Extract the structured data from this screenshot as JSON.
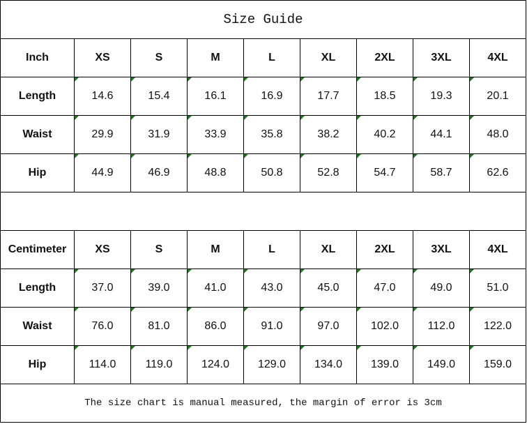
{
  "title": "Size Guide",
  "sizes": [
    "XS",
    "S",
    "M",
    "L",
    "XL",
    "2XL",
    "3XL",
    "4XL"
  ],
  "tables": [
    {
      "unit": "Inch",
      "rows": [
        {
          "label": "Length",
          "values": [
            "14.6",
            "15.4",
            "16.1",
            "16.9",
            "17.7",
            "18.5",
            "19.3",
            "20.1"
          ]
        },
        {
          "label": "Waist",
          "values": [
            "29.9",
            "31.9",
            "33.9",
            "35.8",
            "38.2",
            "40.2",
            "44.1",
            "48.0"
          ]
        },
        {
          "label": "Hip",
          "values": [
            "44.9",
            "46.9",
            "48.8",
            "50.8",
            "52.8",
            "54.7",
            "58.7",
            "62.6"
          ]
        }
      ]
    },
    {
      "unit": "Centimeter",
      "rows": [
        {
          "label": "Length",
          "values": [
            "37.0",
            "39.0",
            "41.0",
            "43.0",
            "45.0",
            "47.0",
            "49.0",
            "51.0"
          ]
        },
        {
          "label": "Waist",
          "values": [
            "76.0",
            "81.0",
            "86.0",
            "91.0",
            "97.0",
            "102.0",
            "112.0",
            "122.0"
          ]
        },
        {
          "label": "Hip",
          "values": [
            "114.0",
            "119.0",
            "124.0",
            "129.0",
            "134.0",
            "139.0",
            "149.0",
            "159.0"
          ]
        }
      ]
    }
  ],
  "note": "The size chart is manual measured, the margin of error is 3cm",
  "colors": {
    "number_text_indicator": "#1a7a1a",
    "border": "#000000"
  }
}
